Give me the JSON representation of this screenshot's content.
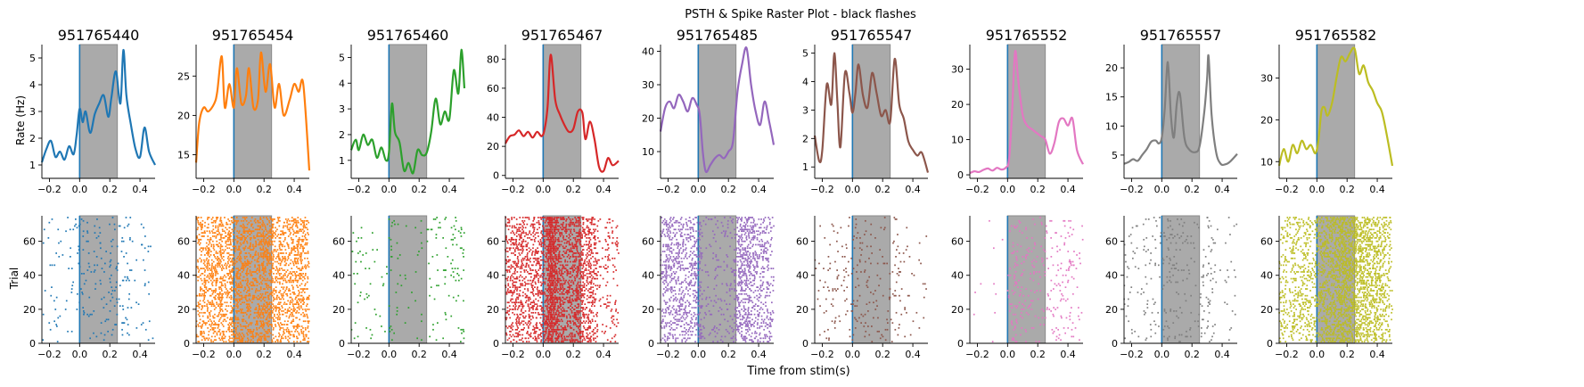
{
  "chart_data": {
    "type": "line",
    "title": "PSTH & Spike Raster Plot - black flashes",
    "xlabel": "Time from stim(s)",
    "psth_ylabel": "Rate (Hz)",
    "raster_ylabel": "Trial",
    "xlim": [
      -0.25,
      0.5
    ],
    "xticks": [
      -0.2,
      0.0,
      0.2,
      0.4
    ],
    "xtick_labels": [
      "−0.2",
      "0.0",
      "0.2",
      "0.4"
    ],
    "stim_window": [
      0.0,
      0.25
    ],
    "raster_ylim": [
      0,
      75
    ],
    "raster_yticks": [
      0,
      20,
      40,
      60
    ],
    "units": [
      {
        "id": "951765440",
        "color": "#1f77b4",
        "ylim": [
          0.5,
          5.5
        ],
        "yticks": [
          1,
          2,
          3,
          4,
          5
        ],
        "density": 0.07,
        "psth": {
          "t": [
            -0.25,
            -0.22,
            -0.19,
            -0.16,
            -0.13,
            -0.1,
            -0.07,
            -0.04,
            -0.02,
            0.0,
            0.02,
            0.04,
            0.07,
            0.1,
            0.13,
            0.16,
            0.19,
            0.21,
            0.24,
            0.27,
            0.29,
            0.31,
            0.34,
            0.37,
            0.4,
            0.43,
            0.46,
            0.5
          ],
          "r": [
            1.1,
            1.6,
            1.9,
            1.3,
            1.5,
            1.2,
            1.7,
            1.4,
            2.1,
            3.1,
            2.6,
            3.0,
            2.2,
            2.9,
            3.3,
            3.6,
            2.8,
            3.5,
            4.5,
            3.3,
            5.3,
            3.6,
            2.5,
            1.6,
            1.3,
            2.4,
            1.5,
            1.0
          ]
        }
      },
      {
        "id": "951765454",
        "color": "#ff7f0e",
        "ylim": [
          12,
          29
        ],
        "yticks": [
          15,
          20,
          25
        ],
        "density": 0.42,
        "psth": {
          "t": [
            -0.25,
            -0.23,
            -0.2,
            -0.17,
            -0.13,
            -0.11,
            -0.08,
            -0.06,
            -0.03,
            0.0,
            0.02,
            0.05,
            0.08,
            0.1,
            0.13,
            0.16,
            0.18,
            0.21,
            0.24,
            0.27,
            0.3,
            0.33,
            0.37,
            0.4,
            0.43,
            0.46,
            0.5
          ],
          "r": [
            14,
            19,
            21,
            20.5,
            21.5,
            23,
            27.5,
            21,
            24,
            21,
            26,
            21.5,
            22.5,
            26,
            21,
            22,
            28,
            23,
            26.5,
            21,
            24,
            20,
            22,
            24,
            23,
            24,
            13
          ]
        }
      },
      {
        "id": "951765460",
        "color": "#2ca02c",
        "ylim": [
          0.3,
          5.5
        ],
        "yticks": [
          1,
          2,
          3,
          4,
          5
        ],
        "density": 0.06,
        "psth": {
          "t": [
            -0.25,
            -0.22,
            -0.2,
            -0.17,
            -0.14,
            -0.11,
            -0.08,
            -0.05,
            -0.02,
            0.0,
            0.02,
            0.04,
            0.07,
            0.1,
            0.13,
            0.16,
            0.19,
            0.22,
            0.25,
            0.28,
            0.31,
            0.34,
            0.37,
            0.4,
            0.43,
            0.46,
            0.48,
            0.5
          ],
          "r": [
            1.4,
            1.8,
            1.4,
            2.0,
            1.6,
            1.8,
            1.1,
            1.5,
            1.0,
            1.3,
            3.2,
            2.1,
            1.7,
            0.6,
            0.9,
            0.5,
            1.4,
            1.2,
            1.3,
            2.1,
            3.4,
            2.4,
            2.9,
            2.6,
            4.5,
            3.6,
            5.3,
            3.8
          ]
        }
      },
      {
        "id": "951765467",
        "color": "#d62728",
        "ylim": [
          -2,
          90
        ],
        "yticks": [
          0,
          20,
          40,
          60,
          80
        ],
        "density": 0.9,
        "psth": {
          "t": [
            -0.25,
            -0.22,
            -0.19,
            -0.16,
            -0.13,
            -0.1,
            -0.07,
            -0.04,
            -0.01,
            0.01,
            0.03,
            0.05,
            0.08,
            0.11,
            0.14,
            0.17,
            0.2,
            0.23,
            0.26,
            0.28,
            0.31,
            0.34,
            0.37,
            0.4,
            0.43,
            0.46,
            0.5
          ],
          "r": [
            22,
            27,
            28,
            31,
            27,
            30,
            26,
            30,
            27,
            32,
            48,
            83,
            52,
            42,
            35,
            30,
            32,
            44,
            43,
            25,
            37,
            25,
            6,
            3,
            12,
            7,
            10
          ]
        }
      },
      {
        "id": "951765485",
        "color": "#9467bd",
        "ylim": [
          2,
          42
        ],
        "yticks": [
          10,
          20,
          30,
          40
        ],
        "density": 0.45,
        "psth": {
          "t": [
            -0.25,
            -0.22,
            -0.19,
            -0.16,
            -0.13,
            -0.1,
            -0.07,
            -0.04,
            -0.01,
            0.01,
            0.03,
            0.05,
            0.08,
            0.11,
            0.14,
            0.17,
            0.2,
            0.23,
            0.26,
            0.29,
            0.32,
            0.35,
            0.38,
            0.41,
            0.44,
            0.47,
            0.5
          ],
          "r": [
            16,
            23,
            25,
            23,
            27,
            25,
            22,
            26,
            24,
            21,
            10,
            4,
            6,
            8,
            9,
            8,
            10,
            13,
            28,
            36,
            41,
            30,
            22,
            18,
            25,
            19,
            12
          ]
        }
      },
      {
        "id": "951765547",
        "color": "#8c564b",
        "ylim": [
          0.6,
          5.3
        ],
        "yticks": [
          1,
          2,
          3,
          4,
          5
        ],
        "density": 0.06,
        "psth": {
          "t": [
            -0.25,
            -0.22,
            -0.2,
            -0.17,
            -0.14,
            -0.12,
            -0.1,
            -0.08,
            -0.05,
            -0.02,
            0.0,
            0.02,
            0.04,
            0.07,
            0.1,
            0.13,
            0.16,
            0.19,
            0.22,
            0.25,
            0.28,
            0.31,
            0.34,
            0.37,
            0.4,
            0.43,
            0.46,
            0.5
          ],
          "r": [
            2.1,
            1.2,
            1.6,
            3.9,
            3.2,
            5.0,
            3.3,
            1.7,
            4.3,
            3.6,
            2.9,
            3.6,
            4.6,
            3.5,
            3.1,
            4.3,
            3.6,
            2.8,
            3.0,
            2.6,
            4.8,
            3.2,
            2.7,
            1.9,
            1.6,
            1.4,
            1.5,
            0.8
          ]
        }
      },
      {
        "id": "951765552",
        "color": "#e377c2",
        "ylim": [
          -1,
          37
        ],
        "yticks": [
          0,
          10,
          20,
          30
        ],
        "density": 0.15,
        "psth": {
          "t": [
            -0.25,
            -0.22,
            -0.19,
            -0.16,
            -0.13,
            -0.1,
            -0.07,
            -0.04,
            -0.01,
            0.01,
            0.03,
            0.05,
            0.07,
            0.1,
            0.13,
            0.16,
            0.19,
            0.22,
            0.25,
            0.28,
            0.31,
            0.34,
            0.37,
            0.4,
            0.43,
            0.46,
            0.5
          ],
          "r": [
            0.5,
            1.0,
            0.8,
            1.4,
            1.8,
            1.2,
            2.0,
            1.5,
            2.1,
            4.5,
            18,
            35,
            27,
            17,
            14,
            13,
            12,
            11,
            10,
            6,
            9,
            15,
            16,
            14,
            16,
            7,
            3
          ]
        }
      },
      {
        "id": "951765557",
        "color": "#7f7f7f",
        "ylim": [
          1,
          24
        ],
        "yticks": [
          5,
          10,
          15,
          20
        ],
        "density": 0.12,
        "psth": {
          "t": [
            -0.25,
            -0.22,
            -0.19,
            -0.16,
            -0.13,
            -0.1,
            -0.07,
            -0.04,
            -0.02,
            0.0,
            0.02,
            0.04,
            0.06,
            0.08,
            0.1,
            0.12,
            0.15,
            0.18,
            0.22,
            0.25,
            0.28,
            0.3,
            0.31,
            0.33,
            0.36,
            0.39,
            0.42,
            0.45,
            0.5
          ],
          "r": [
            3.5,
            3.8,
            4.3,
            4.0,
            5.0,
            6.0,
            7.3,
            7.5,
            7.0,
            8.0,
            13,
            21,
            12,
            8,
            14,
            15.5,
            8,
            6,
            5.5,
            6.5,
            12,
            18,
            22,
            12,
            5.5,
            3.5,
            3.4,
            3.8,
            5.2
          ]
        }
      },
      {
        "id": "951765582",
        "color": "#bcbd22",
        "ylim": [
          6,
          38
        ],
        "yticks": [
          10,
          20,
          30
        ],
        "density": 0.55,
        "psth": {
          "t": [
            -0.25,
            -0.22,
            -0.19,
            -0.16,
            -0.13,
            -0.1,
            -0.07,
            -0.04,
            -0.01,
            0.01,
            0.03,
            0.05,
            0.07,
            0.1,
            0.13,
            0.16,
            0.19,
            0.22,
            0.25,
            0.28,
            0.31,
            0.34,
            0.37,
            0.4,
            0.43,
            0.46,
            0.5
          ],
          "r": [
            9,
            13,
            10,
            14,
            12,
            15,
            13,
            14,
            12,
            15,
            22,
            23,
            21,
            24,
            30,
            35,
            34,
            36,
            37,
            31,
            33,
            29,
            27,
            24,
            22,
            17,
            9
          ]
        }
      }
    ]
  }
}
